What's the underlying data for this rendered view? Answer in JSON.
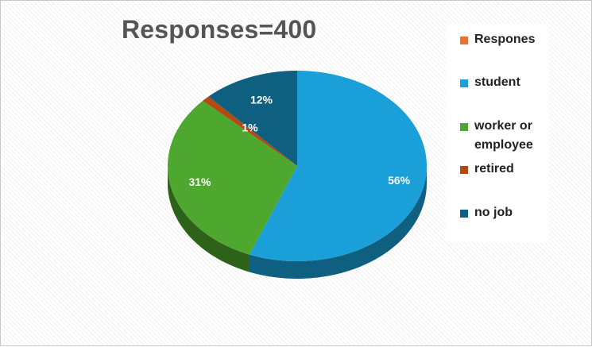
{
  "chart_data": {
    "type": "pie",
    "title": "Responses=400",
    "legend_title": "Respones",
    "legend_position": "right",
    "slices": [
      {
        "label": "student",
        "value": 56,
        "display": "56%",
        "color": "#1a9fd8",
        "side_color": "#0f5f80"
      },
      {
        "label": "worker or employee",
        "value": 31,
        "display": "31%",
        "color": "#4ea72e",
        "side_color": "#2e6219"
      },
      {
        "label": "retired",
        "value": 1,
        "display": "1%",
        "color": "#b34a12",
        "side_color": "#6b2b0a"
      },
      {
        "label": "no job",
        "value": 12,
        "display": "12%",
        "color": "#0f5f80",
        "side_color": "#093a50"
      }
    ],
    "legend_header_color": "#e97132"
  }
}
